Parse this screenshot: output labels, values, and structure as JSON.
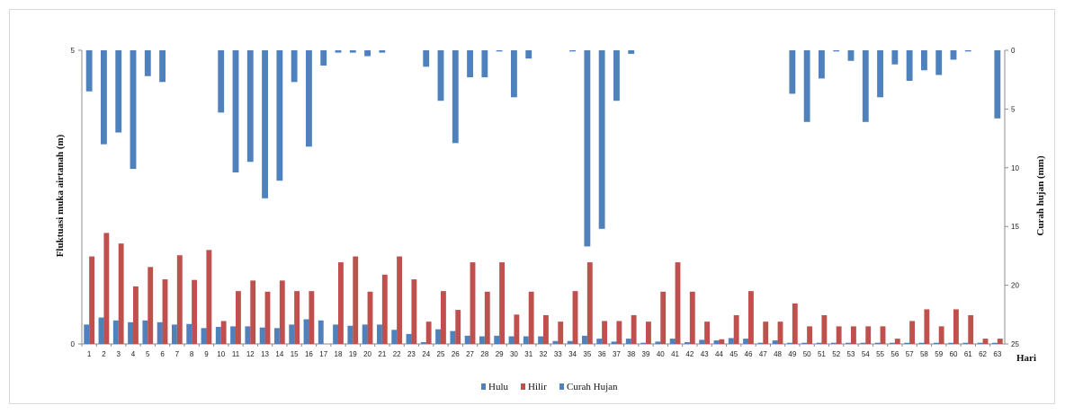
{
  "chart_data": {
    "type": "bar",
    "ylabel_left": "Fluktuasi muka airtanah (m)",
    "ylabel_right": "Curah hujan (mm)",
    "xlabel": "Hari",
    "left_axis": {
      "ticks": [
        "0",
        "5"
      ],
      "ylim": [
        0,
        5
      ]
    },
    "right_axis": {
      "ticks": [
        "0",
        "5",
        "10",
        "15",
        "20",
        "25"
      ],
      "ylim": [
        0,
        25
      ],
      "inverted": true
    },
    "categories": [
      "1",
      "2",
      "3",
      "4",
      "5",
      "6",
      "7",
      "8",
      "9",
      "10",
      "11",
      "12",
      "13",
      "14",
      "15",
      "16",
      "17",
      "18",
      "19",
      "20",
      "21",
      "22",
      "23",
      "24",
      "25",
      "26",
      "27",
      "28",
      "29",
      "30",
      "31",
      "32",
      "33",
      "34",
      "35",
      "36",
      "37",
      "38",
      "39",
      "40",
      "41",
      "42",
      "43",
      "44",
      "45",
      "46",
      "47",
      "48",
      "49",
      "50",
      "51",
      "52",
      "53",
      "54",
      "55",
      "56",
      "57",
      "58",
      "59",
      "60",
      "61",
      "62",
      "63"
    ],
    "series": [
      {
        "name": "Hulu",
        "axis": "left",
        "color": "#4f81bd",
        "values": [
          0.33,
          0.45,
          0.4,
          0.37,
          0.4,
          0.37,
          0.33,
          0.34,
          0.27,
          0.29,
          0.3,
          0.3,
          0.28,
          0.27,
          0.33,
          0.42,
          0.4,
          0.33,
          0.31,
          0.33,
          0.33,
          0.24,
          0.17,
          0.03,
          0.25,
          0.22,
          0.14,
          0.13,
          0.14,
          0.13,
          0.13,
          0.13,
          0.05,
          0.05,
          0.14,
          0.09,
          0.04,
          0.09,
          0.02,
          0.04,
          0.09,
          0.03,
          0.07,
          0.06,
          0.1,
          0.09,
          0.02,
          0.06,
          0.02,
          0.02,
          0.02,
          0.02,
          0.02,
          0.02,
          0.02,
          0.02,
          0.02,
          0.02,
          0.02,
          0.02,
          0.02,
          0.02,
          0.02
        ]
      },
      {
        "name": "Hilir",
        "axis": "left",
        "color": "#c0504d",
        "values": [
          1.49,
          1.89,
          1.71,
          0.98,
          1.31,
          1.1,
          1.51,
          1.09,
          1.6,
          0.39,
          0.9,
          1.08,
          0.89,
          1.08,
          0.9,
          0.9,
          0.0,
          1.39,
          1.49,
          0.89,
          1.18,
          1.49,
          1.1,
          0.38,
          0.9,
          0.58,
          1.39,
          0.89,
          1.39,
          0.5,
          0.89,
          0.49,
          0.38,
          0.9,
          1.39,
          0.39,
          0.39,
          0.49,
          0.38,
          0.89,
          1.39,
          0.89,
          0.38,
          0.08,
          0.49,
          0.9,
          0.38,
          0.38,
          0.69,
          0.3,
          0.49,
          0.3,
          0.3,
          0.3,
          0.3,
          0.09,
          0.39,
          0.59,
          0.3,
          0.59,
          0.49,
          0.09,
          0.09
        ]
      },
      {
        "name": "Curah Hujan",
        "axis": "right",
        "color": "#4f81bd",
        "values": [
          3.5,
          8.0,
          7.0,
          10.1,
          2.2,
          2.7,
          0.0,
          0.0,
          0.0,
          5.3,
          10.4,
          9.5,
          12.6,
          11.1,
          2.7,
          8.2,
          1.3,
          0.2,
          0.2,
          0.5,
          0.2,
          0.0,
          0.0,
          1.4,
          4.3,
          7.9,
          2.3,
          2.3,
          0.1,
          4.0,
          0.7,
          0.0,
          0.0,
          0.1,
          16.7,
          15.2,
          4.3,
          0.3,
          0.0,
          0.0,
          0.0,
          0.0,
          0.0,
          0.0,
          0.0,
          0.0,
          0.0,
          0.0,
          3.7,
          6.1,
          2.4,
          0.1,
          0.9,
          6.1,
          4.0,
          1.2,
          2.6,
          1.7,
          2.1,
          0.8,
          0.1,
          0.0,
          5.8
        ]
      }
    ],
    "legend": {
      "position": "bottom",
      "items": [
        "Hulu",
        "Hilir",
        "Curah Hujan"
      ]
    }
  }
}
